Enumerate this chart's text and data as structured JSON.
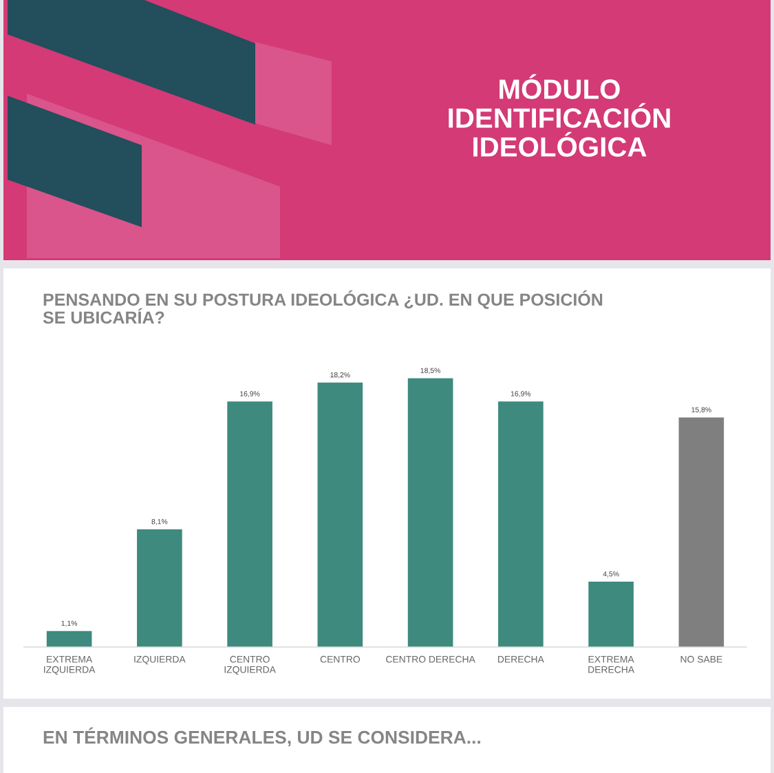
{
  "chart_data": {
    "type": "bar",
    "title": "PENSANDO EN SU POSTURA IDEOLÓGICA ¿UD. EN QUE POSICIÓN\nSE UBICARÍA?",
    "categories": [
      "EXTREMA\nIZQUIERDA",
      "IZQUIERDA",
      "CENTRO\nIZQUIERDA",
      "CENTRO",
      "CENTRO DERECHA",
      "DERECHA",
      "EXTREMA\nDERECHA",
      "NO SABE"
    ],
    "values": [
      1.1,
      8.1,
      16.9,
      18.2,
      18.5,
      16.9,
      4.5,
      15.8
    ],
    "colors": [
      "#3e8a7e",
      "#3e8a7e",
      "#3e8a7e",
      "#3e8a7e",
      "#3e8a7e",
      "#3e8a7e",
      "#3e8a7e",
      "#7f7f7f"
    ],
    "value_labels": [
      "1,1%",
      "8,1%",
      "16,9%",
      "18,2%",
      "18,5%",
      "16,9%",
      "4,5%",
      "15,8%"
    ],
    "tick_labels": "x",
    "annotations": [
      "MÓDULO\nIDENTIFICACIÓN\nIDEOLÓGICA",
      "EN TÉRMINOS GENERALES, UD SE CONSIDERA..."
    ]
  }
}
